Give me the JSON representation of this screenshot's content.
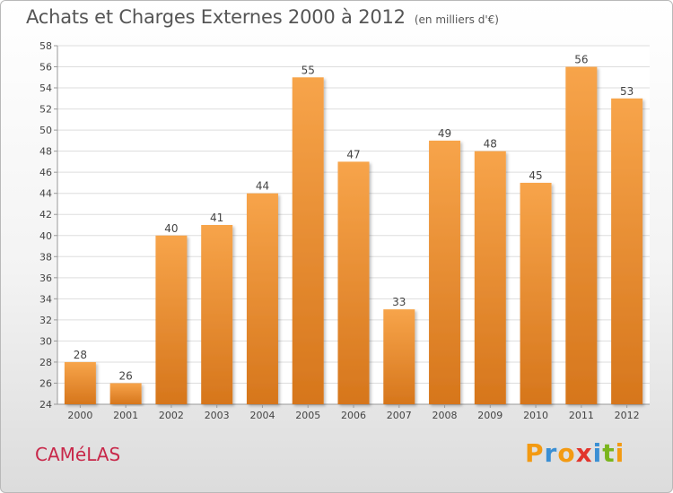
{
  "header": {
    "title": "Achats et Charges Externes 2000 à 2012",
    "subtitle": "(en milliers d'€)"
  },
  "footer": {
    "commune": "CAMéLAS",
    "logo_letters": [
      "P",
      "r",
      "o",
      "x",
      "i",
      "t",
      "i"
    ],
    "logo_colors": [
      "#f39a12",
      "#3a8fd4",
      "#f39a12",
      "#e2342c",
      "#3a8fd4",
      "#7ab51d",
      "#f39a12"
    ]
  },
  "chart_data": {
    "type": "bar",
    "title": "Achats et Charges Externes 2000 à 2012",
    "subtitle": "(en milliers d'€)",
    "categories": [
      "2000",
      "2001",
      "2002",
      "2003",
      "2004",
      "2005",
      "2006",
      "2007",
      "2008",
      "2009",
      "2010",
      "2011",
      "2012"
    ],
    "values": [
      28,
      26,
      40,
      41,
      44,
      55,
      47,
      33,
      49,
      48,
      45,
      56,
      53
    ],
    "ylim": [
      24,
      58
    ],
    "ytick_step": 2,
    "grid": true,
    "legend": "none",
    "colors": {
      "bar_light": "#f7a44a",
      "bar_dark": "#d6761c",
      "grid": "#dddddd",
      "axis": "#999999"
    }
  }
}
